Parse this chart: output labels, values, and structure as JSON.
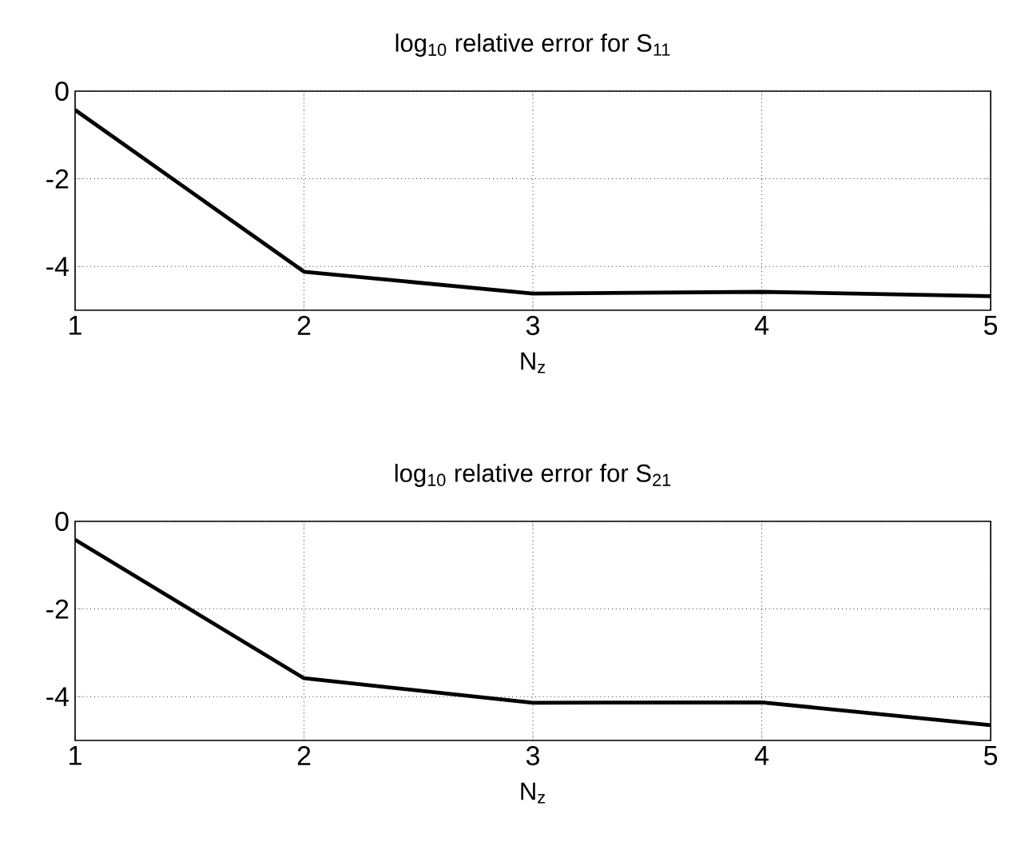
{
  "chart_data": [
    {
      "type": "line",
      "title": "log$_{10}$ relative error for S$_{11}$",
      "xlabel": "N$_{z}$",
      "x": [
        1,
        2,
        3,
        4,
        5
      ],
      "series": [
        {
          "color": "#000000",
          "values": [
            -0.43,
            -4.12,
            -4.62,
            -4.58,
            -4.68
          ]
        }
      ],
      "xlim": [
        1,
        5
      ],
      "xticks": [
        1,
        2,
        3,
        4,
        5
      ],
      "ylim": [
        -5,
        0
      ],
      "yticks": [
        -4,
        -2,
        0
      ],
      "grid": true,
      "line_style": "solid",
      "marker": "none"
    },
    {
      "type": "line",
      "title": "log$_{10}$ relative error for S$_{21}$",
      "xlabel": "N$_{z}$",
      "x": [
        1,
        2,
        3,
        4,
        5
      ],
      "series": [
        {
          "color": "#000000",
          "values": [
            -0.42,
            -3.58,
            -4.14,
            -4.13,
            -4.65
          ]
        }
      ],
      "xlim": [
        1,
        5
      ],
      "xticks": [
        1,
        2,
        3,
        4,
        5
      ],
      "ylim": [
        -5,
        0
      ],
      "yticks": [
        -4,
        -2,
        0
      ],
      "grid": true,
      "line_style": "solid",
      "marker": "none"
    }
  ]
}
